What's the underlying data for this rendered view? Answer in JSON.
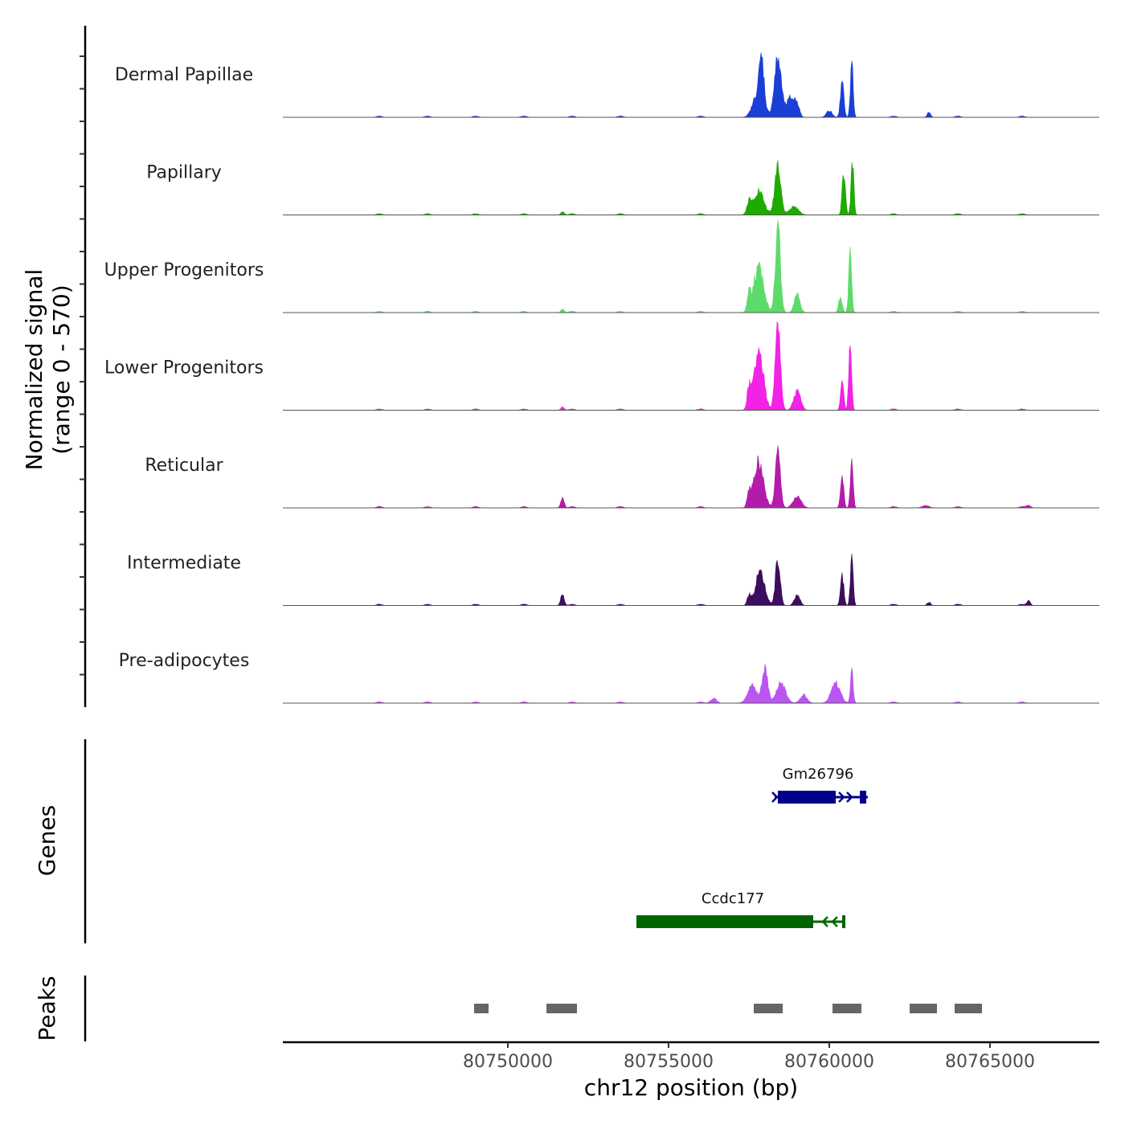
{
  "chart_data": {
    "type": "area",
    "title": "",
    "chromosome": "chr12",
    "xlabel": "chr12 position (bp)",
    "xlim": [
      80743000,
      80768400
    ],
    "xticks": [
      80750000,
      80755000,
      80760000,
      80765000
    ],
    "xtick_labels": [
      "80750000",
      "80755000",
      "80760000",
      "80765000"
    ],
    "signal_axis": {
      "label_line1": "Normalized signal",
      "label_line2": "(range 0 - 570)",
      "ylim": [
        0,
        570
      ]
    },
    "baseline_noise_positions": [
      80746000,
      80747500,
      80749000,
      80750500,
      80752000,
      80753500,
      80756000,
      80762000,
      80764000,
      80766000
    ],
    "tracks": [
      {
        "name": "Dermal Papillae",
        "color": "#1a3fd6",
        "peaks": [
          {
            "center": 80757800,
            "width": 450,
            "height": 160
          },
          {
            "center": 80758400,
            "width": 300,
            "height": 360
          },
          {
            "center": 80757900,
            "width": 200,
            "height": 240
          },
          {
            "center": 80758800,
            "width": 350,
            "height": 120
          },
          {
            "center": 80759000,
            "width": 200,
            "height": 70
          },
          {
            "center": 80760400,
            "width": 150,
            "height": 210
          },
          {
            "center": 80760700,
            "width": 120,
            "height": 340
          },
          {
            "center": 80760000,
            "width": 250,
            "height": 40
          },
          {
            "center": 80763100,
            "width": 150,
            "height": 30
          }
        ]
      },
      {
        "name": "Papillary",
        "color": "#1faa00",
        "peaks": [
          {
            "center": 80757800,
            "width": 450,
            "height": 150
          },
          {
            "center": 80758400,
            "width": 260,
            "height": 320
          },
          {
            "center": 80757500,
            "width": 180,
            "height": 70
          },
          {
            "center": 80758900,
            "width": 400,
            "height": 50
          },
          {
            "center": 80760450,
            "width": 140,
            "height": 260
          },
          {
            "center": 80760720,
            "width": 120,
            "height": 330
          },
          {
            "center": 80751700,
            "width": 150,
            "height": 20
          }
        ]
      },
      {
        "name": "Upper Progenitors",
        "color": "#5ddb6a",
        "peaks": [
          {
            "center": 80757800,
            "width": 450,
            "height": 270
          },
          {
            "center": 80758400,
            "width": 220,
            "height": 540
          },
          {
            "center": 80757500,
            "width": 150,
            "height": 90
          },
          {
            "center": 80759000,
            "width": 250,
            "height": 110
          },
          {
            "center": 80760350,
            "width": 150,
            "height": 100
          },
          {
            "center": 80760650,
            "width": 120,
            "height": 460
          },
          {
            "center": 80751700,
            "width": 150,
            "height": 20
          }
        ]
      },
      {
        "name": "Lower Progenitors",
        "color": "#f222e6",
        "peaks": [
          {
            "center": 80757800,
            "width": 420,
            "height": 360
          },
          {
            "center": 80758400,
            "width": 220,
            "height": 570
          },
          {
            "center": 80757500,
            "width": 150,
            "height": 120
          },
          {
            "center": 80759000,
            "width": 300,
            "height": 120
          },
          {
            "center": 80760400,
            "width": 130,
            "height": 200
          },
          {
            "center": 80760650,
            "width": 120,
            "height": 450
          },
          {
            "center": 80751700,
            "width": 150,
            "height": 20
          }
        ]
      },
      {
        "name": "Reticular",
        "color": "#b31cab",
        "peaks": [
          {
            "center": 80757800,
            "width": 420,
            "height": 280
          },
          {
            "center": 80758400,
            "width": 220,
            "height": 360
          },
          {
            "center": 80757500,
            "width": 150,
            "height": 80
          },
          {
            "center": 80759000,
            "width": 350,
            "height": 70
          },
          {
            "center": 80760400,
            "width": 140,
            "height": 200
          },
          {
            "center": 80760700,
            "width": 120,
            "height": 310
          },
          {
            "center": 80751700,
            "width": 150,
            "height": 60
          },
          {
            "center": 80763000,
            "width": 300,
            "height": 15
          },
          {
            "center": 80766200,
            "width": 200,
            "height": 15
          }
        ]
      },
      {
        "name": "Intermediate",
        "color": "#3b0e5e",
        "peaks": [
          {
            "center": 80757850,
            "width": 420,
            "height": 200
          },
          {
            "center": 80758400,
            "width": 200,
            "height": 300
          },
          {
            "center": 80757500,
            "width": 150,
            "height": 60
          },
          {
            "center": 80759000,
            "width": 250,
            "height": 60
          },
          {
            "center": 80760400,
            "width": 140,
            "height": 190
          },
          {
            "center": 80760700,
            "width": 120,
            "height": 300
          },
          {
            "center": 80751700,
            "width": 150,
            "height": 70
          },
          {
            "center": 80763100,
            "width": 150,
            "height": 20
          },
          {
            "center": 80766200,
            "width": 150,
            "height": 30
          }
        ]
      },
      {
        "name": "Pre-adipocytes",
        "color": "#bb55f2",
        "peaks": [
          {
            "center": 80757600,
            "width": 400,
            "height": 110
          },
          {
            "center": 80758000,
            "width": 250,
            "height": 220
          },
          {
            "center": 80758500,
            "width": 400,
            "height": 120
          },
          {
            "center": 80759200,
            "width": 300,
            "height": 50
          },
          {
            "center": 80760200,
            "width": 400,
            "height": 120
          },
          {
            "center": 80760700,
            "width": 120,
            "height": 190
          },
          {
            "center": 80756400,
            "width": 250,
            "height": 30
          }
        ]
      }
    ],
    "genes_axis_label": "Genes",
    "genes": [
      {
        "name": "Gm26796",
        "strand": "+",
        "color": "#00008b",
        "start": 80758300,
        "end": 80761200,
        "exons": [
          [
            80758400,
            80760200
          ],
          [
            80760950,
            80761150
          ]
        ]
      },
      {
        "name": "Ccdc177",
        "strand": "-",
        "color": "#006400",
        "start": 80754000,
        "end": 80760500,
        "exons": [
          [
            80754000,
            80759500
          ],
          [
            80760400,
            80760500
          ]
        ]
      }
    ],
    "peaks_axis_label": "Peaks",
    "peak_regions": [
      [
        80748950,
        80749400
      ],
      [
        80751200,
        80752150
      ],
      [
        80757650,
        80758550
      ],
      [
        80760100,
        80761000
      ],
      [
        80762500,
        80763350
      ],
      [
        80763900,
        80764750
      ]
    ]
  }
}
